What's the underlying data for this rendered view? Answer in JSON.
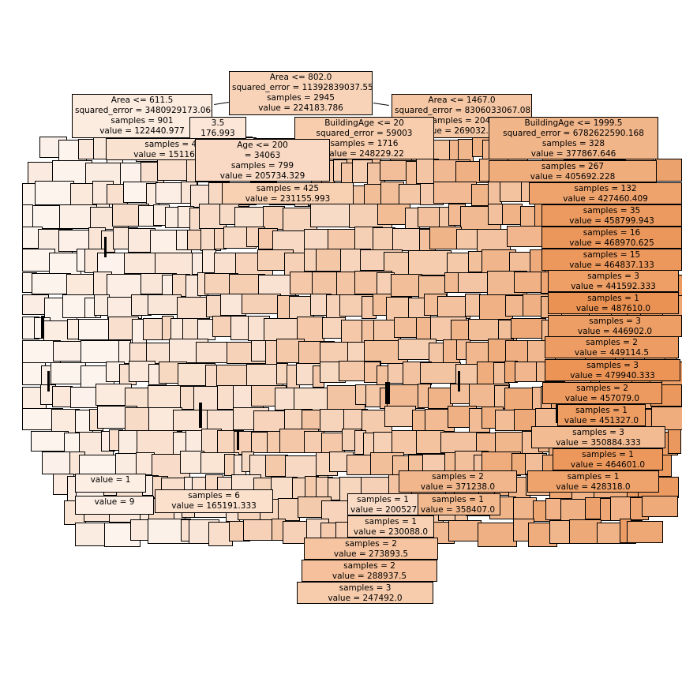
{
  "tree": {
    "nodes": [
      {
        "id": "root",
        "lines": [
          "Area <= 802.0",
          "squared_error = 11392839037.553",
          "samples = 2945",
          "value = 224183.786"
        ],
        "color": "#f8d3b8"
      },
      {
        "id": "left",
        "lines": [
          "Area <= 611.5",
          "squared_error = 3480929173.064",
          "samples = 901",
          "value = 122440.977"
        ],
        "color": "#fcebdf"
      },
      {
        "id": "right",
        "lines": [
          "Area <= 1467.0",
          "squared_error = 8306033067.083",
          "samples = 2044",
          "value = 269032.255"
        ],
        "color": "#f6c7a4"
      },
      {
        "id": "l1",
        "lines": [
          "3.5",
          "176.993"
        ],
        "color": "#fbe6d8"
      },
      {
        "id": "l2",
        "lines": [
          "samples = 487",
          "value = 151160.704"
        ],
        "color": "#fae2d0"
      },
      {
        "id": "c1",
        "lines": [
          "BuildingAge <= 20",
          "squared_error = 59003",
          "samples = 1716",
          "value = 248229.22"
        ],
        "color": "#f7cdad"
      },
      {
        "id": "c2",
        "lines": [
          "Age <= 200",
          "= 34063",
          "samples = 799",
          "value = 205734.329"
        ],
        "color": "#f9d9c3"
      },
      {
        "id": "c3",
        "lines": [
          "samples = 425",
          "value = 231155.993"
        ],
        "color": "#f8d0b2"
      },
      {
        "id": "r1",
        "lines": [
          "BuildingAge <= 1999.5",
          "squared_error = 6782622590.168",
          "samples = 328",
          "value = 377867.646"
        ],
        "color": "#f1b58a"
      },
      {
        "id": "r2",
        "lines": [
          "samples = 267",
          "value = 405692.228"
        ],
        "color": "#f0ad7c"
      },
      {
        "id": "r3",
        "lines": [
          "samples = 132",
          "value = 427460.409"
        ],
        "color": "#eea26c"
      },
      {
        "id": "r4",
        "lines": [
          "samples = 35",
          "value = 458799.943"
        ],
        "color": "#ec9a5f"
      },
      {
        "id": "r5",
        "lines": [
          "samples = 16",
          "value = 468970.625"
        ],
        "color": "#eb975b"
      },
      {
        "id": "r6",
        "lines": [
          "samples = 15",
          "value = 464837.133"
        ],
        "color": "#ec985c"
      },
      {
        "id": "r7",
        "lines": [
          "samples = 3",
          "value = 441592.333"
        ],
        "color": "#ed9f66"
      },
      {
        "id": "r8",
        "lines": [
          "samples = 1",
          "value = 487610.0"
        ],
        "color": "#ea9253"
      },
      {
        "id": "r9",
        "lines": [
          "samples = 3",
          "value = 446902.0"
        ],
        "color": "#ed9e64"
      },
      {
        "id": "r10",
        "lines": [
          "samples = 2",
          "value = 449114.5"
        ],
        "color": "#ed9d63"
      },
      {
        "id": "r11",
        "lines": [
          "samples = 3",
          "value = 479940.333"
        ],
        "color": "#eb9456"
      },
      {
        "id": "r12",
        "lines": [
          "samples = 2",
          "value = 457079.0"
        ],
        "color": "#ec9a5f"
      },
      {
        "id": "r13",
        "lines": [
          "samples = 1",
          "value = 451327.0"
        ],
        "color": "#ed9c62"
      },
      {
        "id": "r14",
        "lines": [
          "samples = 3",
          "value = 350884.333"
        ],
        "color": "#f2bb92"
      },
      {
        "id": "r15",
        "lines": [
          "samples = 1",
          "value = 464601.0"
        ],
        "color": "#ec985c"
      },
      {
        "id": "r16",
        "lines": [
          "samples = 1",
          "value = 428318.0"
        ],
        "color": "#eea26c"
      },
      {
        "id": "m1",
        "lines": [
          "samples = 2",
          "value = 371238.0"
        ],
        "color": "#f1b68c"
      },
      {
        "id": "m2",
        "lines": [
          "samples = 1",
          "value = 358407.0"
        ],
        "color": "#f2b98f"
      },
      {
        "id": "m3",
        "lines": [
          "samples = 1",
          "value = 200527"
        ],
        "color": "#f9dac5"
      },
      {
        "id": "m4",
        "lines": [
          "samples = 1",
          "value = 230088.0"
        ],
        "color": "#f8d1b4"
      },
      {
        "id": "m5",
        "lines": [
          "samples = 2",
          "value = 273893.5"
        ],
        "color": "#f6c4a0"
      },
      {
        "id": "m6",
        "lines": [
          "samples = 2",
          "value = 288937.5"
        ],
        "color": "#f5c09b"
      },
      {
        "id": "m7",
        "lines": [
          "samples = 3",
          "value = 247492.0"
        ],
        "color": "#f7ccad"
      },
      {
        "id": "b1",
        "lines": [
          "samples = 6",
          "value = 165191.333"
        ],
        "color": "#fbe0cc"
      },
      {
        "id": "b2",
        "lines": [
          "value = 1"
        ],
        "color": "#fdeee4"
      },
      {
        "id": "b3",
        "lines": [
          "value = 9"
        ],
        "color": "#fdefe5"
      }
    ]
  }
}
